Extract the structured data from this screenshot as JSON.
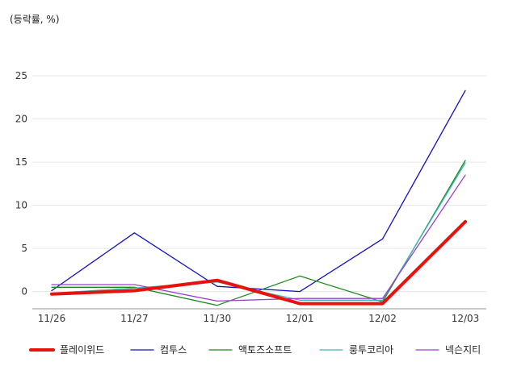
{
  "chart_data": {
    "type": "line",
    "unit_label": "(등락률, %)",
    "categories": [
      "11/26",
      "11/27",
      "11/30",
      "12/01",
      "12/02",
      "12/03"
    ],
    "yticks": [
      0,
      5,
      10,
      15,
      20,
      25
    ],
    "ylim": [
      -2,
      27
    ],
    "grid": true,
    "legend_position": "bottom",
    "series": [
      {
        "name": "플레이위드",
        "color": "#e8120c",
        "emphasis": true,
        "values": [
          -0.3,
          0.1,
          1.3,
          -1.4,
          -1.4,
          8.1
        ]
      },
      {
        "name": "컴투스",
        "color": "#1010c8",
        "emphasis": false,
        "values": [
          0.1,
          6.8,
          0.6,
          0.0,
          6.1,
          23.3
        ]
      },
      {
        "name": "액토즈소프트",
        "color": "#1a8a1a",
        "emphasis": false,
        "values": [
          0.5,
          0.5,
          -1.6,
          1.8,
          -1.2,
          15.2
        ]
      },
      {
        "name": "룽투코리아",
        "color": "#3cb8b4",
        "emphasis": false,
        "values": [
          -0.2,
          0.4,
          1.1,
          -1.0,
          -1.0,
          14.9
        ]
      },
      {
        "name": "넥슨지티",
        "color": "#9a3fd0",
        "emphasis": false,
        "values": [
          0.8,
          0.8,
          -1.1,
          -0.8,
          -0.8,
          13.5
        ]
      }
    ]
  }
}
